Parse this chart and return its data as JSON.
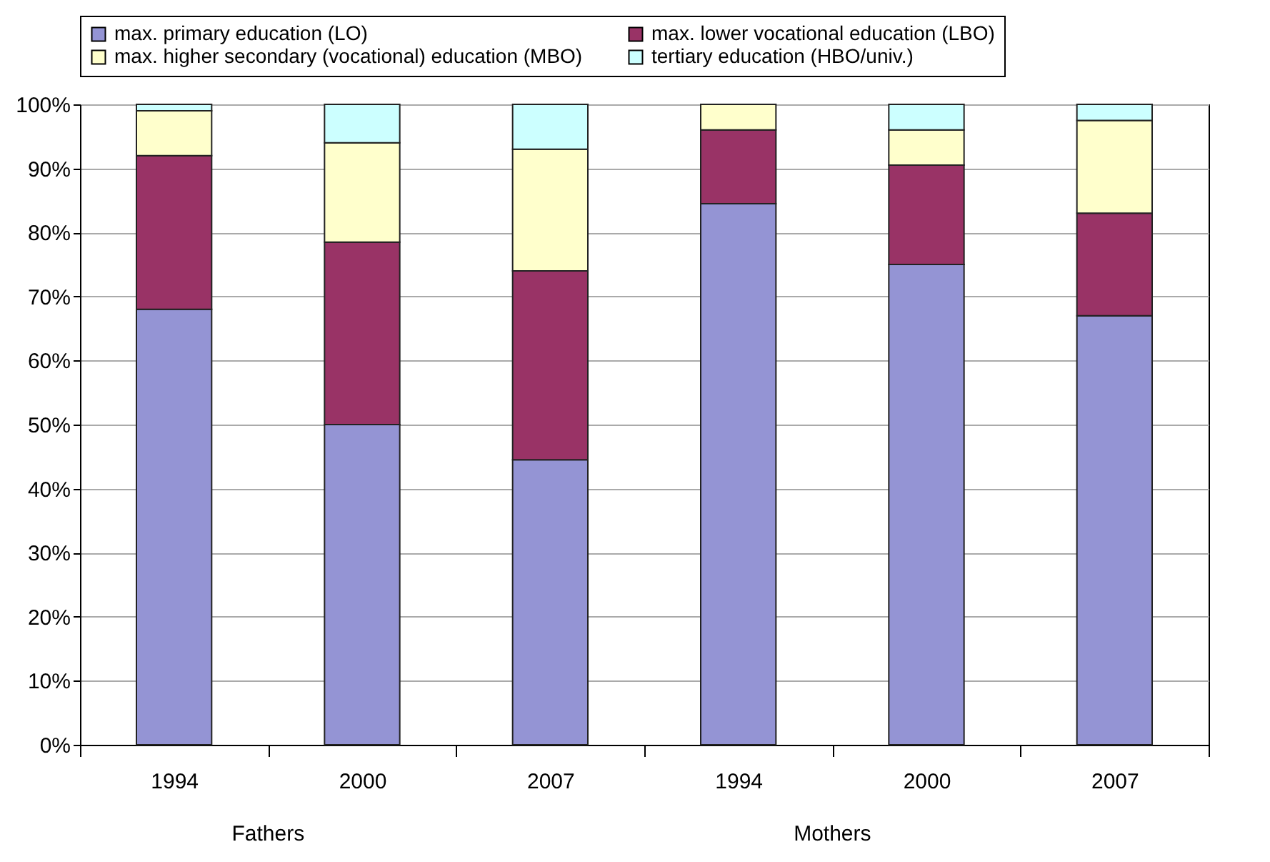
{
  "chart_data": {
    "type": "bar",
    "stacked": true,
    "categories": [
      "1994",
      "2000",
      "2007",
      "1994",
      "2000",
      "2007"
    ],
    "series": [
      {
        "name": "max. primary education (LO)",
        "color": "#9494d4",
        "values": [
          68,
          50,
          44.5,
          84.5,
          75,
          67
        ]
      },
      {
        "name": "max. lower vocational education (LBO)",
        "color": "#993366",
        "values": [
          24,
          28.5,
          29.5,
          11.5,
          15.5,
          16
        ]
      },
      {
        "name": "max. higher secondary (vocational) education (MBO)",
        "color": "#ffffcc",
        "values": [
          7,
          15.5,
          19,
          4,
          5.5,
          14.5
        ]
      },
      {
        "name": "tertiary education (HBO/univ.)",
        "color": "#ccffff",
        "values": [
          1,
          6,
          7,
          0,
          4,
          2.5
        ]
      }
    ],
    "ylim": [
      0,
      100
    ],
    "yticks": [
      {
        "value": 0,
        "label": "0%"
      },
      {
        "value": 10,
        "label": "10%"
      },
      {
        "value": 20,
        "label": "20%"
      },
      {
        "value": 30,
        "label": "30%"
      },
      {
        "value": 40,
        "label": "40%"
      },
      {
        "value": 50,
        "label": "50%"
      },
      {
        "value": 60,
        "label": "60%"
      },
      {
        "value": 70,
        "label": "70%"
      },
      {
        "value": 80,
        "label": "80%"
      },
      {
        "value": 90,
        "label": "90%"
      },
      {
        "value": 100,
        "label": "100%"
      }
    ],
    "grid": "y",
    "legend": "top",
    "annotations": [
      "Fathers",
      "Mothers"
    ]
  }
}
